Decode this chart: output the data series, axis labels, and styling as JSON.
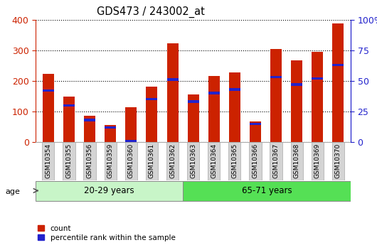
{
  "title": "GDS473 / 243002_at",
  "categories": [
    "GSM10354",
    "GSM10355",
    "GSM10356",
    "GSM10359",
    "GSM10360",
    "GSM10361",
    "GSM10362",
    "GSM10363",
    "GSM10364",
    "GSM10365",
    "GSM10366",
    "GSM10367",
    "GSM10368",
    "GSM10369",
    "GSM10370"
  ],
  "count_values": [
    222,
    148,
    85,
    55,
    115,
    182,
    322,
    155,
    217,
    228,
    68,
    305,
    268,
    295,
    388
  ],
  "percentile_values": [
    42,
    30,
    18,
    12,
    0,
    35,
    51,
    33,
    40,
    43,
    15,
    53,
    47,
    52,
    63
  ],
  "group1_label": "20-29 years",
  "group2_label": "65-71 years",
  "group1_count": 7,
  "group2_count": 8,
  "left_ylim": [
    0,
    400
  ],
  "right_ylim": [
    0,
    100
  ],
  "left_yticks": [
    0,
    100,
    200,
    300,
    400
  ],
  "right_yticks": [
    0,
    25,
    50,
    75,
    100
  ],
  "right_yticklabels": [
    "0",
    "25",
    "50",
    "75",
    "100%"
  ],
  "color_count": "#cc2200",
  "color_percentile": "#2222cc",
  "color_group1_light": "#c8f5c8",
  "color_group2_bright": "#55e055",
  "color_axis_left": "#cc2200",
  "color_axis_right": "#2222cc",
  "bar_width": 0.55,
  "legend_count": "count",
  "legend_percentile": "percentile rank within the sample",
  "background_bar": "#d4d4d4",
  "group_border": "#888888"
}
